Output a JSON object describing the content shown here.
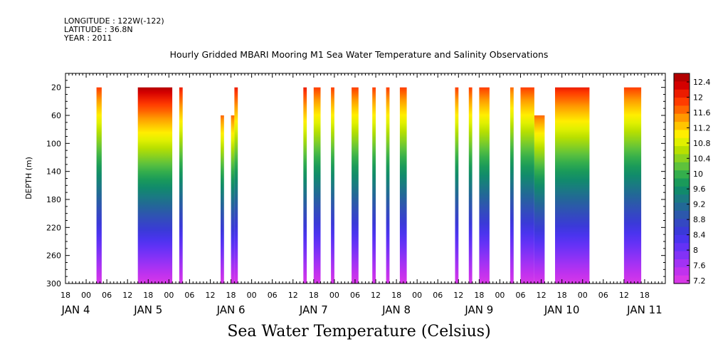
{
  "header": {
    "longitude": "LONGITUDE : 122W(-122)",
    "latitude": "LATITUDE : 36.8N",
    "year": "YEAR : 2011"
  },
  "title": "Hourly Gridded MBARI Mooring M1 Sea Water Temperature and Salinity Observations",
  "bottom_title": "Sea Water Temperature (Celsius)",
  "chart_data": {
    "type": "heatmap",
    "title": "Hourly Gridded MBARI Mooring M1 Sea Water Temperature and Salinity Observations",
    "subtitle": "Sea Water Temperature (Celsius)",
    "ylabel": "DEPTH (m)",
    "ylim": [
      300,
      0
    ],
    "y_ticks": [
      20,
      60,
      100,
      140,
      180,
      220,
      260,
      300
    ],
    "x_range_hours": [
      -6,
      168
    ],
    "x_hour_ticks": [
      {
        "h": -6,
        "label": "18"
      },
      {
        "h": 0,
        "label": "00"
      },
      {
        "h": 6,
        "label": "06"
      },
      {
        "h": 12,
        "label": "12"
      },
      {
        "h": 18,
        "label": "18"
      },
      {
        "h": 24,
        "label": "00"
      },
      {
        "h": 30,
        "label": "06"
      },
      {
        "h": 36,
        "label": "12"
      },
      {
        "h": 42,
        "label": "18"
      },
      {
        "h": 48,
        "label": "00"
      },
      {
        "h": 54,
        "label": "06"
      },
      {
        "h": 60,
        "label": "12"
      },
      {
        "h": 66,
        "label": "18"
      },
      {
        "h": 72,
        "label": "00"
      },
      {
        "h": 78,
        "label": "06"
      },
      {
        "h": 84,
        "label": "12"
      },
      {
        "h": 90,
        "label": "18"
      },
      {
        "h": 96,
        "label": "00"
      },
      {
        "h": 102,
        "label": "06"
      },
      {
        "h": 108,
        "label": "12"
      },
      {
        "h": 114,
        "label": "18"
      },
      {
        "h": 120,
        "label": "00"
      },
      {
        "h": 126,
        "label": "06"
      },
      {
        "h": 132,
        "label": "12"
      },
      {
        "h": 138,
        "label": "18"
      },
      {
        "h": 144,
        "label": "00"
      },
      {
        "h": 150,
        "label": "06"
      },
      {
        "h": 156,
        "label": "12"
      },
      {
        "h": 162,
        "label": "18"
      }
    ],
    "x_day_labels": [
      {
        "h": -3,
        "label": "JAN  4"
      },
      {
        "h": 18,
        "label": "JAN  5"
      },
      {
        "h": 42,
        "label": "JAN  6"
      },
      {
        "h": 66,
        "label": "JAN  7"
      },
      {
        "h": 90,
        "label": "JAN  8"
      },
      {
        "h": 114,
        "label": "JAN  9"
      },
      {
        "h": 138,
        "label": "JAN 10"
      },
      {
        "h": 162,
        "label": "JAN 11"
      }
    ],
    "colorbar": {
      "levels": [
        12.4,
        12,
        11.6,
        11.2,
        10.8,
        10.4,
        10,
        9.6,
        9.2,
        8.8,
        8.4,
        8,
        7.6,
        7.2
      ],
      "colors": [
        "#b30000",
        "#d40000",
        "#ec1c00",
        "#ff3c00",
        "#ff6600",
        "#ff9900",
        "#ffc400",
        "#ffee00",
        "#e0f000",
        "#b8e000",
        "#8cd21e",
        "#5ec23c",
        "#34ae4c",
        "#1a9a5a",
        "#118a6c",
        "#1a7a82",
        "#226896",
        "#2c58ac",
        "#3448c2",
        "#3a3ad8",
        "#4a34ee",
        "#6432f6",
        "#8232f6",
        "#a232f4",
        "#c032ee",
        "#d838e8"
      ]
    },
    "surface_temp_range": [
      12.4,
      7.2
    ],
    "series": [
      {
        "start_h": 3,
        "end_h": 4.5,
        "top_depth": 20,
        "surface_temp": 11.8
      },
      {
        "start_h": 15,
        "end_h": 25,
        "top_depth": 20,
        "surface_temp": 12.4
      },
      {
        "start_h": 27,
        "end_h": 28,
        "top_depth": 20,
        "surface_temp": 12.0
      },
      {
        "start_h": 39,
        "end_h": 40,
        "top_depth": 60,
        "surface_temp": 11.6
      },
      {
        "start_h": 42,
        "end_h": 43,
        "top_depth": 60,
        "surface_temp": 11.6
      },
      {
        "start_h": 43,
        "end_h": 44,
        "top_depth": 20,
        "surface_temp": 12.0
      },
      {
        "start_h": 63,
        "end_h": 64,
        "top_depth": 20,
        "surface_temp": 12.0
      },
      {
        "start_h": 66,
        "end_h": 68,
        "top_depth": 20,
        "surface_temp": 11.8
      },
      {
        "start_h": 71,
        "end_h": 72,
        "top_depth": 20,
        "surface_temp": 11.8
      },
      {
        "start_h": 77,
        "end_h": 79,
        "top_depth": 20,
        "surface_temp": 11.8
      },
      {
        "start_h": 83,
        "end_h": 84,
        "top_depth": 20,
        "surface_temp": 11.8
      },
      {
        "start_h": 87,
        "end_h": 88,
        "top_depth": 20,
        "surface_temp": 11.8
      },
      {
        "start_h": 91,
        "end_h": 93,
        "top_depth": 20,
        "surface_temp": 11.8
      },
      {
        "start_h": 107,
        "end_h": 108,
        "top_depth": 20,
        "surface_temp": 11.8
      },
      {
        "start_h": 111,
        "end_h": 112,
        "top_depth": 20,
        "surface_temp": 11.8
      },
      {
        "start_h": 114,
        "end_h": 117,
        "top_depth": 20,
        "surface_temp": 11.8
      },
      {
        "start_h": 123,
        "end_h": 124,
        "top_depth": 20,
        "surface_temp": 11.6
      },
      {
        "start_h": 126,
        "end_h": 130,
        "top_depth": 20,
        "surface_temp": 11.8
      },
      {
        "start_h": 130,
        "end_h": 133,
        "top_depth": 60,
        "surface_temp": 11.6
      },
      {
        "start_h": 136,
        "end_h": 146,
        "top_depth": 20,
        "surface_temp": 12.0
      },
      {
        "start_h": 156,
        "end_h": 161,
        "top_depth": 20,
        "surface_temp": 11.8
      }
    ]
  }
}
